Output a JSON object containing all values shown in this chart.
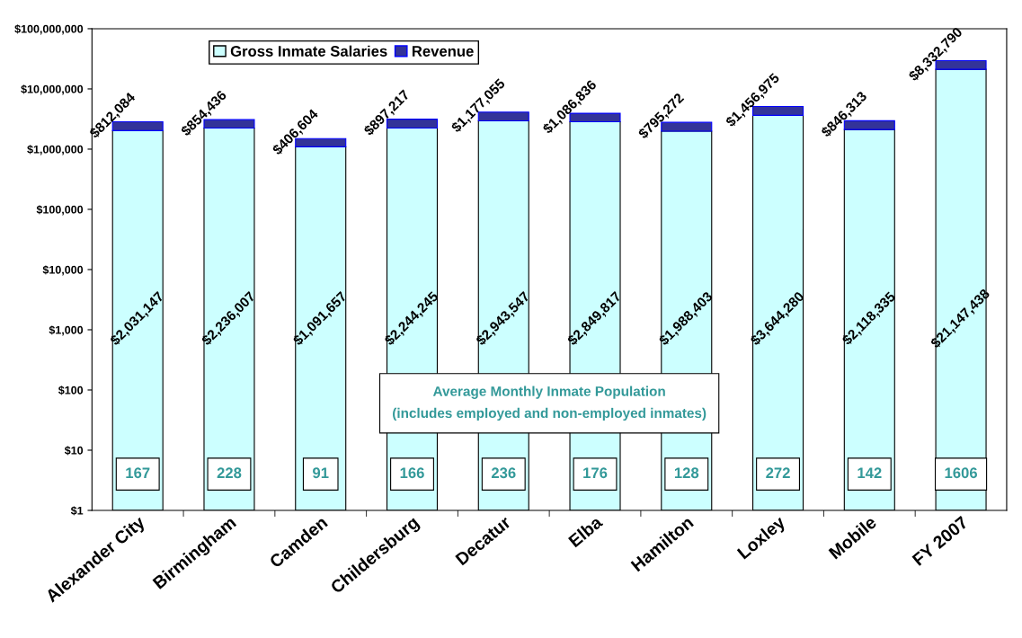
{
  "chart_data": {
    "type": "bar",
    "stacked": true,
    "log": "y",
    "categories": [
      "Alexander City",
      "Birmingham",
      "Camden",
      "Childersburg",
      "Decatur",
      "Elba",
      "Hamilton",
      "Loxley",
      "Mobile",
      "FY 2007"
    ],
    "series": [
      {
        "name": "Gross Inmate Salaries",
        "color": "#ccffff",
        "values": [
          2031147,
          2236007,
          1091657,
          2244245,
          2943547,
          2849817,
          1988403,
          3644280,
          2118335,
          21147438
        ],
        "value_labels": [
          "$2,031,147",
          "$2,236,007",
          "$1,091,657",
          "$2,244,245",
          "$2,943,547",
          "$2,849,817",
          "$1,988,403",
          "$3,644,280",
          "$2,118,335",
          "$21,147,438"
        ]
      },
      {
        "name": "Revenue",
        "color": "#333399",
        "values": [
          812084,
          854436,
          406604,
          897217,
          1177055,
          1086836,
          795272,
          1456975,
          846313,
          8332790
        ],
        "value_labels": [
          "$812,084",
          "$854,436",
          "$406,604",
          "$897,217",
          "$1,177,055",
          "$1,086,836",
          "$795,272",
          "$1,456,975",
          "$846,313",
          "$8,332,790"
        ]
      }
    ],
    "ylim": [
      1,
      100000000
    ],
    "yticks": [
      {
        "value": 1,
        "label": "$1"
      },
      {
        "value": 10,
        "label": "$10"
      },
      {
        "value": 100,
        "label": "$100"
      },
      {
        "value": 1000,
        "label": "$1,000"
      },
      {
        "value": 10000,
        "label": "$10,000"
      },
      {
        "value": 100000,
        "label": "$100,000"
      },
      {
        "value": 1000000,
        "label": "$1,000,000"
      },
      {
        "value": 10000000,
        "label": "$10,000,000"
      },
      {
        "value": 100000000,
        "label": "$100,000,000"
      }
    ],
    "grid": false,
    "legend": "top left",
    "annotations": [
      "Average Monthly Inmate Population\n(includes employed and non-employed inmates)",
      "167",
      "228",
      "91",
      "166",
      "236",
      "176",
      "128",
      "272",
      "142",
      "1606"
    ]
  }
}
